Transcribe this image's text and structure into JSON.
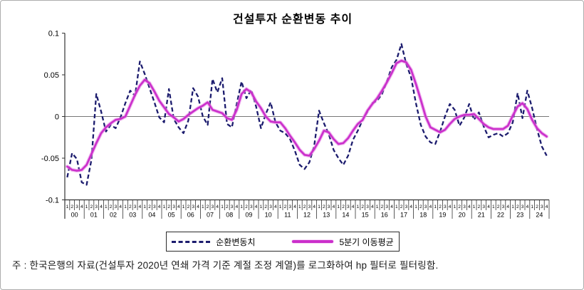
{
  "footnote": "주 : 한국은행의 자료(건설투자 2020년 연쇄 가격 기준 계절 조정 계열)를 로그화하여 hp 필터로 필터링함.",
  "chart_data": {
    "type": "line",
    "title": "건설투자 순환변동 추이",
    "xlabel": "",
    "ylabel": "",
    "ylim": [
      -0.1,
      0.1
    ],
    "yticks": [
      0.1,
      0.05,
      0,
      -0.05,
      -0.1
    ],
    "ytick_labels": [
      "0.1",
      "0.05",
      "0",
      "-0.05",
      "-0.1"
    ],
    "grid": "zero-line-only",
    "legend_position": "bottom-center-boxed",
    "x_axis": {
      "quarter_labels": [
        "1",
        "2",
        "3",
        "4"
      ],
      "years": [
        "00",
        "01",
        "02",
        "03",
        "04",
        "05",
        "06",
        "07",
        "08",
        "09",
        "10",
        "11",
        "12",
        "13",
        "14",
        "15",
        "16",
        "17",
        "18",
        "19",
        "20",
        "21",
        "22",
        "23",
        "24"
      ]
    },
    "colors": {
      "cyclical_line": "#1c1c6e",
      "moving_average_line": "#cb2fcb",
      "zero_line": "#777777",
      "axis": "#333333"
    },
    "series": [
      {
        "name": "순환변동치",
        "style": "dashed",
        "color": "#1c1c6e",
        "values": [
          -0.073,
          -0.044,
          -0.051,
          -0.079,
          -0.082,
          -0.052,
          0.027,
          0.006,
          -0.018,
          -0.01,
          -0.014,
          -0.001,
          0.016,
          0.031,
          0.025,
          0.066,
          0.051,
          0.034,
          0.017,
          -0.001,
          -0.007,
          0.033,
          -0.003,
          -0.013,
          -0.02,
          -0.005,
          0.034,
          0.024,
          0.0,
          -0.01,
          0.045,
          0.029,
          0.046,
          -0.009,
          -0.013,
          0.015,
          0.042,
          0.022,
          0.032,
          0.012,
          -0.014,
          0.003,
          0.017,
          -0.007,
          -0.017,
          -0.02,
          -0.027,
          -0.041,
          -0.058,
          -0.063,
          -0.055,
          -0.035,
          0.007,
          -0.008,
          -0.021,
          -0.04,
          -0.05,
          -0.058,
          -0.047,
          -0.028,
          -0.017,
          -0.004,
          0.006,
          0.016,
          0.019,
          0.027,
          0.042,
          0.059,
          0.068,
          0.087,
          0.063,
          0.047,
          0.016,
          -0.01,
          -0.024,
          -0.031,
          -0.033,
          -0.018,
          0.0,
          0.015,
          0.008,
          -0.011,
          -0.001,
          0.015,
          -0.004,
          0.005,
          -0.012,
          -0.025,
          -0.022,
          -0.02,
          -0.024,
          -0.02,
          -0.007,
          0.028,
          -0.002,
          0.031,
          0.01,
          -0.015,
          -0.036,
          -0.047
        ]
      },
      {
        "name": "5분기 이동평균",
        "style": "solid",
        "color": "#cb2fcb",
        "values": [
          -0.06,
          -0.064,
          -0.065,
          -0.064,
          -0.058,
          -0.045,
          -0.032,
          -0.02,
          -0.013,
          -0.008,
          -0.004,
          -0.003,
          0.0,
          0.013,
          0.026,
          0.037,
          0.044,
          0.04,
          0.03,
          0.019,
          0.011,
          0.003,
          -0.001,
          -0.006,
          -0.003,
          0.002,
          0.006,
          0.01,
          0.013,
          0.017,
          0.008,
          0.006,
          0.004,
          -0.002,
          -0.004,
          0.008,
          0.027,
          0.033,
          0.029,
          0.018,
          0.01,
          0.0,
          -0.006,
          -0.007,
          -0.007,
          -0.014,
          -0.023,
          -0.031,
          -0.04,
          -0.046,
          -0.047,
          -0.039,
          -0.029,
          -0.017,
          -0.019,
          -0.027,
          -0.033,
          -0.032,
          -0.026,
          -0.017,
          -0.009,
          -0.004,
          0.007,
          0.015,
          0.022,
          0.031,
          0.041,
          0.052,
          0.064,
          0.067,
          0.065,
          0.056,
          0.039,
          0.02,
          0.0,
          -0.013,
          -0.016,
          -0.019,
          -0.016,
          -0.009,
          -0.003,
          0.0,
          0.002,
          0.002,
          0.003,
          -0.003,
          -0.009,
          -0.013,
          -0.015,
          -0.015,
          -0.015,
          -0.011,
          0.001,
          0.012,
          0.016,
          0.009,
          -0.004,
          -0.014,
          -0.02,
          -0.024
        ]
      }
    ]
  }
}
